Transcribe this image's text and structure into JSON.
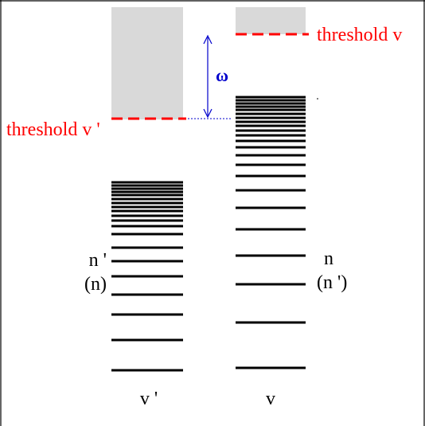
{
  "labels": {
    "threshold_left": "threshold v '",
    "threshold_right": "threshold v",
    "omega": "ω",
    "left_state_top": "n '",
    "left_state_bottom": "(n)",
    "right_state_top": "n",
    "right_state_bottom": "(n ')",
    "left_column": "v '",
    "right_column": "v"
  },
  "colors": {
    "threshold": "#ff0000",
    "omega": "#0000cc",
    "continuum": "#d9d9d9",
    "levels": "#000000"
  },
  "levels": {
    "left_count": 19,
    "right_count": 23
  }
}
